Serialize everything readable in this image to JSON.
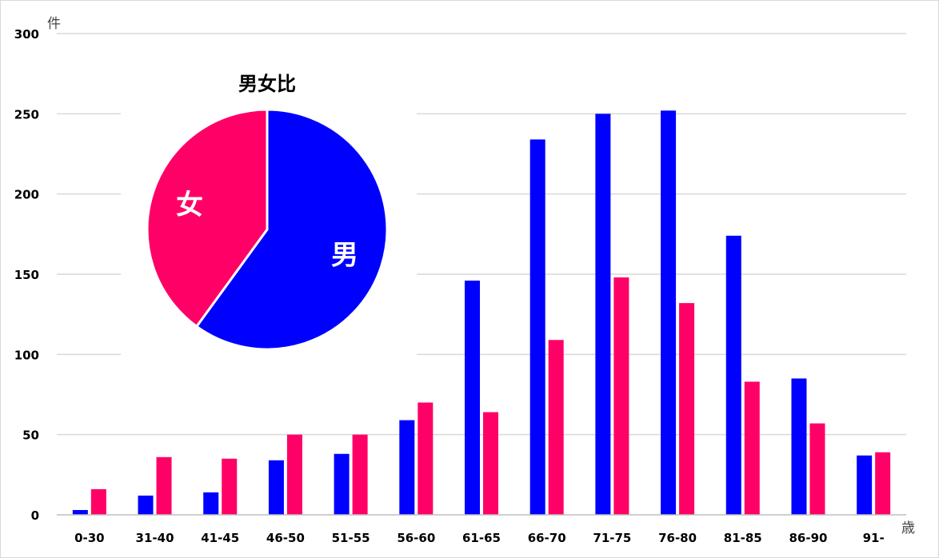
{
  "colors": {
    "male": "#0000ff",
    "female": "#ff0066",
    "grid": "#d9d9d9",
    "axis": "#bfbfbf"
  },
  "chart_data": [
    {
      "type": "bar",
      "title": "",
      "y_unit": "件",
      "x_unit": "歳",
      "ylim": [
        0,
        300
      ],
      "yticks": [
        0,
        50,
        100,
        150,
        200,
        250,
        300
      ],
      "grid": true,
      "categories": [
        "0-30",
        "31-40",
        "41-45",
        "46-50",
        "51-55",
        "56-60",
        "61-65",
        "66-70",
        "71-75",
        "76-80",
        "81-85",
        "86-90",
        "91-"
      ],
      "series": [
        {
          "key": "male",
          "values": [
            3,
            12,
            14,
            34,
            38,
            59,
            146,
            234,
            250,
            252,
            174,
            85,
            37
          ]
        },
        {
          "key": "female",
          "values": [
            16,
            36,
            35,
            50,
            50,
            70,
            64,
            109,
            148,
            132,
            83,
            57,
            39
          ]
        }
      ]
    },
    {
      "type": "pie",
      "title": "男女比",
      "slices": [
        {
          "label": "男",
          "value": 60,
          "color": "#0000ff"
        },
        {
          "label": "女",
          "value": 40,
          "color": "#ff0066"
        }
      ]
    }
  ]
}
